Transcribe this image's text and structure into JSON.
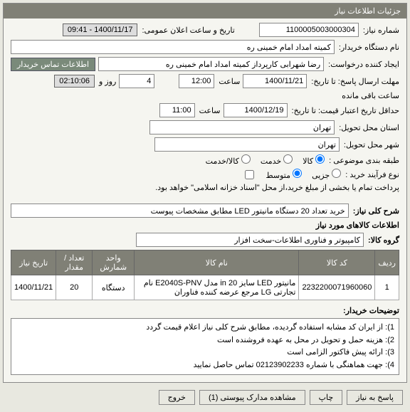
{
  "header": {
    "title": "جزئیات اطلاعات نیاز"
  },
  "fields": {
    "needNo": {
      "label": "شماره نیاز:",
      "value": "1100005003000304"
    },
    "announceDate": {
      "label": "تاریخ و ساعت اعلان عمومی:",
      "value": "1400/11/17 - 09:41"
    },
    "buyerOrg": {
      "label": "نام دستگاه خریدار:",
      "value": "کمیته امداد امام خمینی ره"
    },
    "creator": {
      "label": "ایجاد کننده درخواست:",
      "value": "رضا شهرابی کارپرداز کمیته امداد امام خمینی ره"
    },
    "contactBtn": "اطلاعات تماس خریدار",
    "deadlinePre": "مهلت ارسال پاسخ: تا تاریخ:",
    "deadlineDate": "1400/11/21",
    "hourLbl": "ساعت",
    "deadlineHour": "12:00",
    "dayLbl": "روز و",
    "days": "4",
    "remainLbl": "ساعت باقی مانده",
    "remain": "02:10:06",
    "validityPre": "حداقل تاریخ اعتبار قیمت: تا تاریخ:",
    "validityDate": "1400/12/19",
    "validityHour": "11:00",
    "city": {
      "label": "استان محل تحویل:",
      "value": "تهران"
    },
    "cityDeliver": {
      "label": "شهر محل تحویل:",
      "value": "تهران"
    },
    "subjectType": {
      "label": "طبقه بندی موضوعی :",
      "opts": [
        "کالا",
        "خدمت",
        "کالا/خدمت"
      ],
      "sel": "کالا"
    },
    "processType": {
      "label": "نوع فرآیند خرید :",
      "opts": [
        "جزیی",
        "متوسط"
      ],
      "sel": "متوسط",
      "note": "پرداخت تمام یا بخشی از مبلغ خرید،از محل \"اسناد خزانه اسلامی\" خواهد بود."
    },
    "summary": {
      "label": "شرح کلی نیاز:",
      "value": "خرید تعداد 20 دستگاه مانیتور LED مطابق مشخصات پیوست"
    },
    "itemsHeader": "اطلاعات کالاهای مورد نیاز",
    "group": {
      "label": "گروه کالا:",
      "value": "کامپیوتر و فناوری اطلاعات-سخت افزار"
    },
    "cols": [
      "ردیف",
      "کد کالا",
      "نام کالا",
      "واحد شمارش",
      "تعداد / مقدار",
      "تاریخ نیاز"
    ],
    "row": {
      "idx": "1",
      "code": "2232200071960060",
      "name": "مانیتور LED سایز 20 in مدل E2040S-PNV نام تجارتی LG مرجع عرضه کننده فناوران",
      "unit": "دستگاه",
      "qty": "20",
      "date": "1400/11/21"
    },
    "buyerNotes": {
      "label": "توضیحات خریدار:",
      "lines": [
        "1): از ایران کد مشابه استفاده گردیده، مطابق شرح کلی نیاز اعلام قیمت گردد",
        "2): هزینه حمل و تحویل در محل به عهده فروشنده است",
        "3): ارائه پیش فاکتور الزامی است",
        "4): جهت هماهنگی با شماره 02123902233 تماس حاصل نمایید"
      ]
    }
  },
  "buttons": {
    "reply": "پاسخ به نیاز",
    "print": "چاپ",
    "attach": "مشاهده مدارک پیوستی (1)",
    "exit": "خروج"
  }
}
